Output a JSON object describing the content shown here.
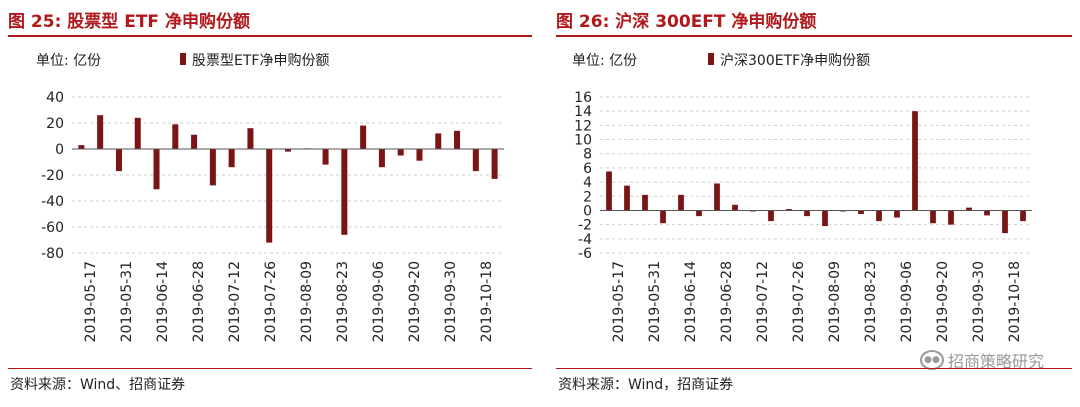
{
  "charts": [
    {
      "title": "图 25:  股票型 ETF 净申购份额",
      "source": "资料来源：Wind、招商证券",
      "chart_data": {
        "type": "bar",
        "unit_label": "单位:  亿份",
        "series": [
          {
            "name": "股票型ETF净申购份额",
            "color": "#7b1416",
            "values": [
              3,
              26,
              -17,
              24,
              -31,
              19,
              11,
              -28,
              -14,
              16,
              -72,
              -2,
              0.5,
              -12,
              -66,
              18,
              -14,
              -5,
              -9,
              12,
              14,
              -17,
              -23
            ]
          }
        ],
        "x_tick_labels": [
          "2019-05-17",
          "2019-05-31",
          "2019-06-14",
          "2019-06-28",
          "2019-07-12",
          "2019-07-26",
          "2019-08-09",
          "2019-08-23",
          "2019-09-06",
          "2019-09-20",
          "2019-09-30",
          "2019-10-18"
        ],
        "y_ticks": [
          -80,
          -60,
          -40,
          -20,
          0,
          20,
          40
        ],
        "ylim": [
          -80,
          40
        ],
        "grid": true,
        "legend_position": "top"
      }
    },
    {
      "title": "图 26:  沪深 300EFT 净申购份额",
      "source": "资料来源：Wind，招商证券",
      "watermark": "招商策略研究",
      "chart_data": {
        "type": "bar",
        "unit_label": "单位:  亿份",
        "series": [
          {
            "name": "沪深300ETF净申购份额",
            "color": "#7b1416",
            "values": [
              5.5,
              3.5,
              2.2,
              -1.8,
              2.2,
              -0.8,
              3.8,
              0.8,
              0,
              -1.5,
              0.2,
              -0.8,
              -2.2,
              0,
              -0.5,
              -1.5,
              -1.0,
              14.0,
              -1.8,
              -2.0,
              0.4,
              -0.7,
              -3.2,
              -1.5
            ]
          }
        ],
        "x_tick_labels": [
          "2019-05-17",
          "2019-05-31",
          "2019-06-14",
          "2019-06-28",
          "2019-07-12",
          "2019-07-26",
          "2019-08-09",
          "2019-08-23",
          "2019-09-06",
          "2019-09-20",
          "2019-09-30",
          "2019-10-18"
        ],
        "y_ticks": [
          -6,
          -4,
          -2,
          0,
          2,
          4,
          6,
          8,
          10,
          12,
          14,
          16
        ],
        "ylim": [
          -6,
          16
        ],
        "grid": true,
        "legend_position": "top"
      }
    }
  ]
}
